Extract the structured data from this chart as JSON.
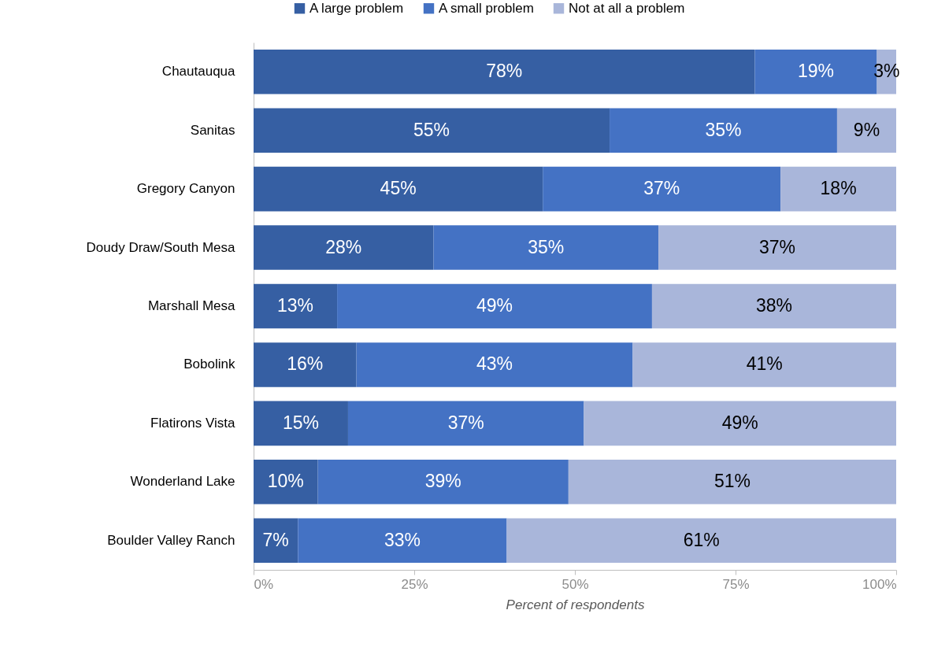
{
  "chart_data": {
    "type": "bar",
    "orientation": "horizontal",
    "stacked": true,
    "xlabel": "Percent of respondents",
    "categories": [
      "Chautauqua",
      "Sanitas",
      "Gregory Canyon",
      "Doudy Draw/South Mesa",
      "Marshall Mesa",
      "Bobolink",
      "Flatirons Vista",
      "Wonderland Lake",
      "Boulder Valley Ranch"
    ],
    "series": [
      {
        "name": "A large problem",
        "color": "#365fa3",
        "values": [
          78,
          55.4,
          45,
          28,
          13,
          16,
          14.7,
          10,
          6.9
        ],
        "value_labels": [
          "78%",
          "55%",
          "45%",
          "28%",
          "13%",
          "16%",
          "15%",
          "10%",
          "7%"
        ]
      },
      {
        "name": "A small problem",
        "color": "#4472c4",
        "values": [
          19,
          35.4,
          37,
          35,
          49,
          43,
          36.7,
          39,
          32.5
        ],
        "value_labels": [
          "19%",
          "35%",
          "37%",
          "35%",
          "49%",
          "43%",
          "37%",
          "39%",
          "33%"
        ]
      },
      {
        "name": "Not at all a problem",
        "color": "#a9b6da",
        "values": [
          3,
          9.2,
          18,
          37,
          38,
          41,
          48.6,
          51,
          60.6
        ],
        "value_labels": [
          "3%",
          "9%",
          "18%",
          "37%",
          "38%",
          "41%",
          "49%",
          "51%",
          "61%"
        ]
      }
    ],
    "xlim": [
      0,
      100
    ],
    "xticks": [
      {
        "value": 0,
        "label": "0%"
      },
      {
        "value": 25,
        "label": "25%"
      },
      {
        "value": 50,
        "label": "50%"
      },
      {
        "value": 75,
        "label": "75%"
      },
      {
        "value": 100,
        "label": "100%"
      }
    ],
    "grid": false,
    "legend": "top"
  }
}
